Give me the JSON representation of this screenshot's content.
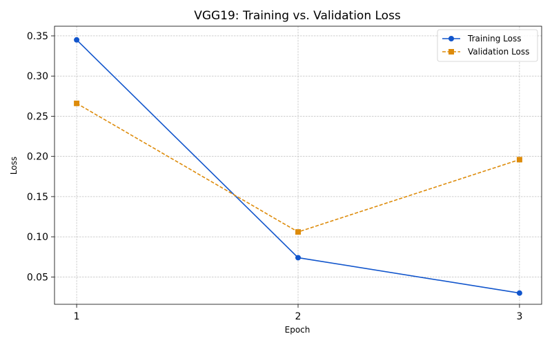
{
  "chart_data": {
    "type": "line",
    "title": "VGG19: Training vs. Validation Loss",
    "xlabel": "Epoch",
    "ylabel": "Loss",
    "x": [
      1,
      2,
      3
    ],
    "xticks": [
      "1",
      "2",
      "3"
    ],
    "xlim": [
      0.9,
      3.1
    ],
    "ylim": [
      0.016,
      0.362
    ],
    "yticks": [
      "0.05",
      "0.10",
      "0.15",
      "0.20",
      "0.25",
      "0.30",
      "0.35"
    ],
    "grid": true,
    "legend_position": "top-right",
    "series": [
      {
        "name": "Training Loss",
        "values": [
          0.345,
          0.074,
          0.03
        ],
        "color": "#1155cc",
        "marker": "circle",
        "line_style": "solid"
      },
      {
        "name": "Validation Loss",
        "values": [
          0.266,
          0.106,
          0.196
        ],
        "color": "#dd8b0a",
        "marker": "square",
        "line_style": "dashed"
      }
    ]
  }
}
